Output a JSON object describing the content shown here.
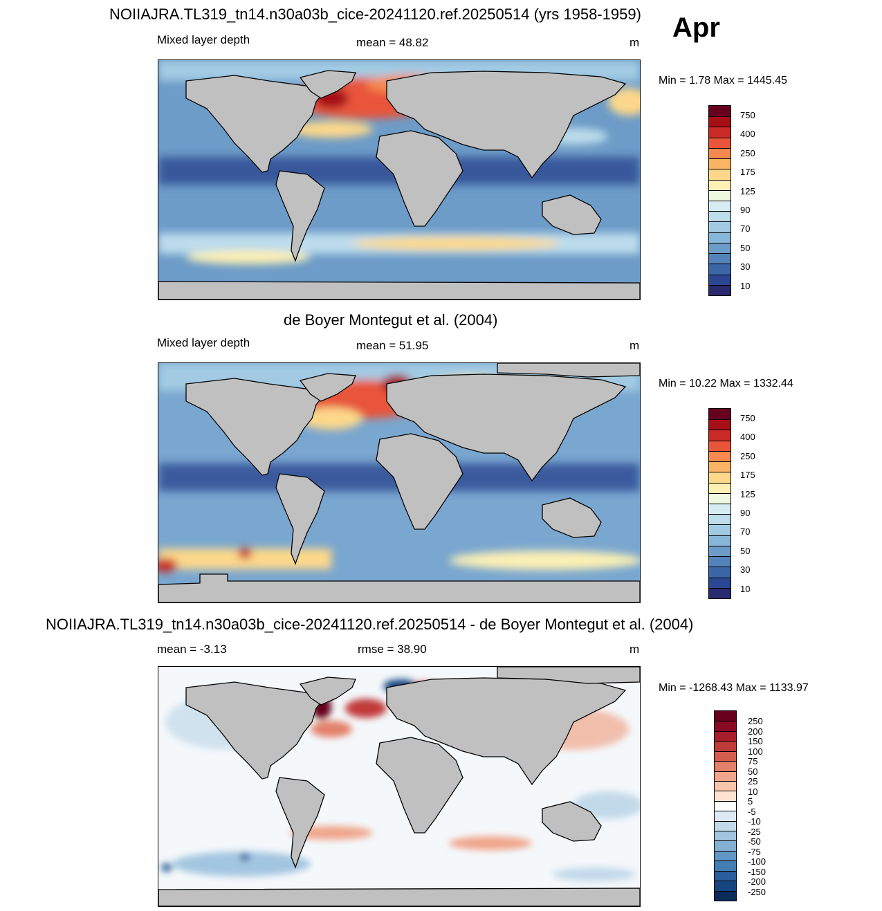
{
  "figure": {
    "month": "Apr"
  },
  "panels": [
    {
      "id": "model",
      "title": "NOIIAJRA.TL319_tn14.n30a03b_cice-20241120.ref.20250514 (yrs 1958-1959)",
      "left_label": "Mixed layer depth",
      "center_label": "mean =  48.82",
      "unit": "m",
      "minmax": "Min =   1.78 Max = 1445.45",
      "ocean_base": "#6d9cc8",
      "colorbar": {
        "labels": [
          "750",
          "400",
          "250",
          "175",
          "125",
          "90",
          "70",
          "50",
          "30",
          "10"
        ],
        "colors": [
          "#67001f",
          "#a50f15",
          "#cb2b26",
          "#e8553b",
          "#f5894f",
          "#fbb463",
          "#fdd88a",
          "#fcf0b4",
          "#eef7e0",
          "#d7ecf2",
          "#bddcec",
          "#a2cbe3",
          "#87b6d8",
          "#6d9cc8",
          "#5383ba",
          "#3b66a8",
          "#2c4791",
          "#2a2a6e"
        ]
      }
    },
    {
      "id": "obs",
      "title": "de Boyer Montegut et al. (2004)",
      "left_label": "Mixed layer depth",
      "center_label": "mean =  51.95",
      "unit": "m",
      "minmax": "Min =  10.22 Max = 1332.44",
      "ocean_base": "#7aa7d0",
      "colorbar": {
        "labels": [
          "750",
          "400",
          "250",
          "175",
          "125",
          "90",
          "70",
          "50",
          "30",
          "10"
        ],
        "colors": [
          "#67001f",
          "#a50f15",
          "#cb2b26",
          "#e8553b",
          "#f5894f",
          "#fbb463",
          "#fdd88a",
          "#fcf0b4",
          "#eef7e0",
          "#d7ecf2",
          "#bddcec",
          "#a2cbe3",
          "#87b6d8",
          "#6d9cc8",
          "#5383ba",
          "#3b66a8",
          "#2c4791",
          "#2a2a6e"
        ]
      }
    },
    {
      "id": "diff",
      "title": "NOIIAJRA.TL319_tn14.n30a03b_cice-20241120.ref.20250514 - de Boyer Montegut et al. (2004)",
      "left_label": "mean =  -3.13",
      "center_label": "rmse =  38.90",
      "unit": "m",
      "minmax": "Min = -1268.43 Max = 1133.97",
      "ocean_base": "#f4f8fb",
      "colorbar": {
        "labels": [
          "250",
          "200",
          "150",
          "100",
          "75",
          "50",
          "25",
          "10",
          "5",
          "-5",
          "-10",
          "-25",
          "-50",
          "-75",
          "-100",
          "-150",
          "-200",
          "-250"
        ],
        "colors": [
          "#67001f",
          "#890a24",
          "#a81d2b",
          "#c13a3a",
          "#d45d4e",
          "#e3816a",
          "#f0a58a",
          "#f8c6ad",
          "#fde2d2",
          "#ffffff",
          "#dde9f3",
          "#c2d9ea",
          "#a3c6e0",
          "#84b0d4",
          "#6396c4",
          "#447db3",
          "#2a5f9b",
          "#174580",
          "#0a2c5a"
        ]
      }
    }
  ]
}
